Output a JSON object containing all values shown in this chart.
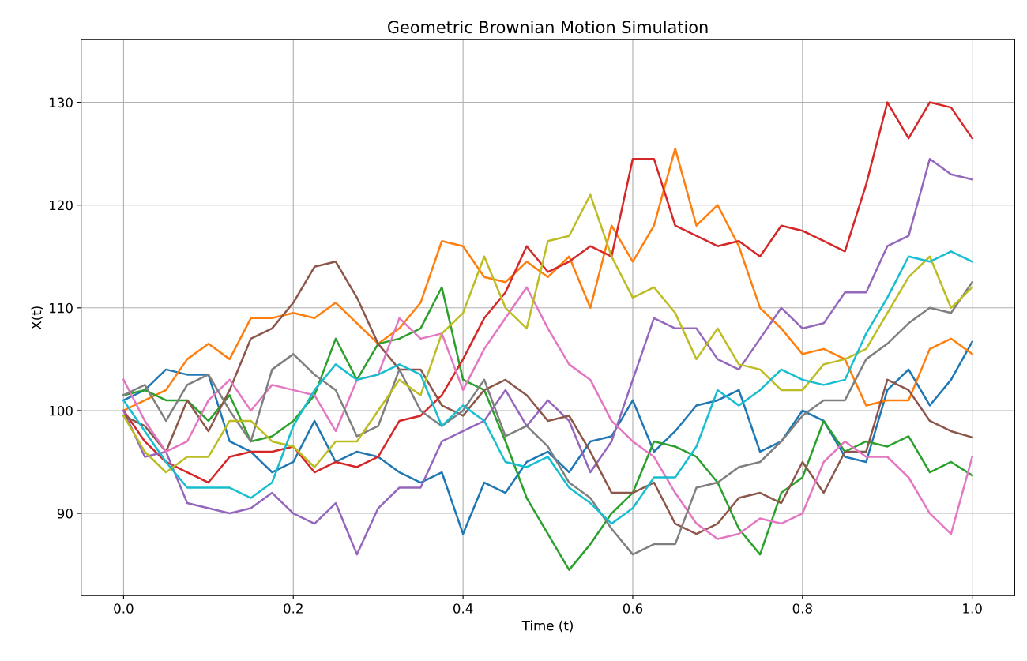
{
  "chart_data": {
    "type": "line",
    "title": "Geometric Brownian Motion Simulation",
    "xlabel": "Time (t)",
    "ylabel": "X(t)",
    "x": [
      0,
      0.025,
      0.05,
      0.075,
      0.1,
      0.125,
      0.15,
      0.175,
      0.2,
      0.225,
      0.25,
      0.275,
      0.3,
      0.325,
      0.35,
      0.375,
      0.4,
      0.425,
      0.45,
      0.475,
      0.5,
      0.525,
      0.55,
      0.575,
      0.6,
      0.625,
      0.65,
      0.675,
      0.7,
      0.725,
      0.75,
      0.775,
      0.8,
      0.825,
      0.85,
      0.875,
      0.9,
      0.925,
      0.95,
      0.975,
      1.0
    ],
    "xlim": [
      -0.05,
      1.05
    ],
    "ylim": [
      82.0,
      136.1
    ],
    "xticks": [
      {
        "value": 0,
        "label": "0.0"
      },
      {
        "value": 0.2,
        "label": "0.2"
      },
      {
        "value": 0.4,
        "label": "0.4"
      },
      {
        "value": 0.6,
        "label": "0.6"
      },
      {
        "value": 0.8,
        "label": "0.8"
      },
      {
        "value": 1.0,
        "label": "1.0"
      }
    ],
    "yticks": [
      90,
      100,
      110,
      120,
      130
    ],
    "grid": true,
    "marker": "none",
    "line_style": "solid",
    "series": [
      {
        "color": "#1f77b4",
        "values": [
          101,
          102,
          104,
          103.5,
          103.5,
          97,
          96,
          94,
          95,
          99,
          95,
          96,
          95.5,
          94,
          93,
          94,
          88,
          93,
          92,
          95,
          96,
          94,
          97,
          97.5,
          101,
          96,
          98,
          100.5,
          101,
          102,
          96,
          97,
          100,
          99,
          95.5,
          95,
          102,
          104,
          100.5,
          103,
          106.7
        ]
      },
      {
        "color": "#ff7f0e",
        "values": [
          100,
          101,
          102,
          105,
          106.5,
          105,
          109,
          109,
          109.5,
          109,
          110.5,
          108.5,
          106.5,
          108,
          110.5,
          116.5,
          116,
          113,
          112.5,
          114.5,
          113,
          115,
          110,
          118,
          114.5,
          118,
          125.5,
          118,
          120,
          116,
          110,
          108,
          105.5,
          106,
          105,
          100.5,
          101,
          101,
          106,
          107,
          105.5
        ]
      },
      {
        "color": "#2ca02c",
        "values": [
          101.5,
          102,
          101,
          101,
          99,
          101.5,
          97,
          97.5,
          99,
          101.5,
          107,
          103,
          106.5,
          107,
          108,
          112,
          103,
          102,
          97,
          91.5,
          88,
          84.5,
          87,
          90,
          92,
          97,
          96.5,
          95.5,
          93,
          88.5,
          86,
          92,
          93.5,
          99,
          96,
          97,
          96.5,
          97.5,
          94,
          95,
          93.7
        ]
      },
      {
        "color": "#d62728",
        "values": [
          100,
          97,
          95,
          94,
          93,
          95.5,
          96,
          96,
          96.5,
          94,
          95,
          94.5,
          95.5,
          99,
          99.5,
          101.5,
          105,
          109,
          111.5,
          116,
          113.5,
          114.5,
          116,
          115,
          124.5,
          124.5,
          118,
          117,
          116,
          116.5,
          115,
          118,
          117.5,
          116.5,
          115.5,
          122,
          130,
          126.5,
          130,
          129.5,
          126.5
        ]
      },
      {
        "color": "#9467bd",
        "values": [
          100,
          95.5,
          96,
          91,
          90.5,
          90,
          90.5,
          92,
          90,
          89,
          91,
          86,
          90.5,
          92.5,
          92.5,
          97,
          98,
          99,
          102,
          98.5,
          101,
          99,
          94,
          97,
          103,
          109,
          108,
          108,
          105,
          104,
          107,
          110,
          108,
          108.5,
          111.5,
          111.5,
          116,
          117,
          124.5,
          123,
          122.5
        ]
      },
      {
        "color": "#8c564b",
        "values": [
          99.5,
          98.5,
          96,
          101,
          98,
          102,
          107,
          108,
          110.5,
          114,
          114.5,
          111,
          106.5,
          104,
          104,
          100.5,
          99.5,
          102,
          103,
          101.5,
          99,
          99.5,
          96,
          92,
          92,
          93,
          89,
          88,
          89,
          91.5,
          92,
          91,
          95,
          92,
          96,
          96,
          103,
          102,
          99,
          98,
          97.4
        ]
      },
      {
        "color": "#e377c2",
        "values": [
          103,
          99,
          96,
          97,
          101,
          103,
          100,
          102.5,
          102,
          101.5,
          98,
          103,
          103.5,
          109,
          107,
          107.5,
          102,
          106,
          109,
          112,
          108,
          104.5,
          103,
          99,
          97,
          95.5,
          92,
          89,
          87.5,
          88,
          89.5,
          89,
          90,
          95,
          97,
          95.5,
          95.5,
          93.5,
          90,
          88,
          95.5
        ]
      },
      {
        "color": "#7f7f7f",
        "values": [
          101.5,
          102.5,
          99,
          102.5,
          103.5,
          100,
          97,
          104,
          105.5,
          103.5,
          102,
          97.5,
          98.5,
          104,
          100,
          98.5,
          100,
          103,
          97.5,
          98.5,
          96.5,
          93,
          91.5,
          88.5,
          86,
          87,
          87,
          92.5,
          93,
          94.5,
          95,
          97,
          99.5,
          101,
          101,
          105,
          106.5,
          108.5,
          110,
          109.5,
          112.5
        ]
      },
      {
        "color": "#bcbd22",
        "values": [
          99.5,
          96,
          94,
          95.5,
          95.5,
          99,
          99,
          97,
          96.5,
          94.5,
          97,
          97,
          100,
          103,
          101.5,
          107.5,
          109.5,
          115,
          110,
          108,
          116.5,
          117,
          121,
          115,
          111,
          112,
          109.5,
          105,
          108,
          104.5,
          104,
          102,
          102,
          104.5,
          105,
          106,
          109.5,
          113,
          115,
          110,
          112
        ]
      },
      {
        "color": "#17becf",
        "values": [
          101,
          98,
          95,
          92.5,
          92.5,
          92.5,
          91.5,
          93,
          98.5,
          102,
          104.5,
          103,
          103.5,
          104.5,
          103.5,
          98.5,
          100.5,
          99,
          95,
          94.5,
          95.5,
          92.5,
          91,
          89,
          90.5,
          93.5,
          93.5,
          96.5,
          102,
          100.5,
          102,
          104,
          103,
          102.5,
          103,
          107.5,
          111,
          115,
          114.5,
          115.5,
          114.5
        ]
      }
    ]
  }
}
